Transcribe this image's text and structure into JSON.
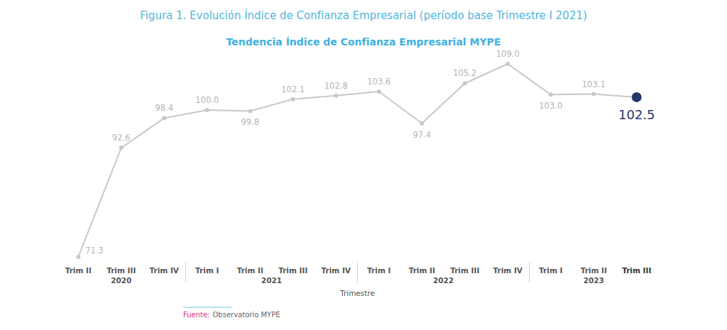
{
  "chart_data": {
    "type": "line",
    "title": "Figura 1. Evolución Índice de Confianza Empresarial (período base Trimestre I 2021)",
    "subtitle": "Tendencia Índice de Confianza Empresarial MYPE",
    "x_label": "Trimestre",
    "source_label": "Fuente:",
    "source": "Observatorio MYPE",
    "categories": [
      "Trim II",
      "Trim III",
      "Trim IV",
      "Trim I",
      "Trim II",
      "Trim III",
      "Trim IV",
      "Trim I",
      "Trim II",
      "Trim III",
      "Trim IV",
      "Trim I",
      "Trim II",
      "Trim III"
    ],
    "x_groups": [
      {
        "label": "2020",
        "count": 3
      },
      {
        "label": "2021",
        "count": 4
      },
      {
        "label": "2022",
        "count": 4
      },
      {
        "label": "2023",
        "count": 3
      }
    ],
    "values": [
      71.3,
      92.6,
      98.4,
      100.0,
      99.8,
      102.1,
      102.8,
      103.6,
      97.4,
      105.2,
      109.0,
      103.0,
      103.1,
      102.5
    ],
    "value_labels": [
      "71.3",
      "92.6",
      "98.4",
      "100.0",
      "99.8",
      "102.1",
      "102.8",
      "103.6",
      "97.4",
      "105.2",
      "109.0",
      "103.0",
      "103.1",
      "102.5"
    ],
    "color": "#c8c8c8",
    "colors": [
      "#c8c8c8",
      "#c8c8c8",
      "#c8c8c8",
      "#c8c8c8",
      "#c8c8c8",
      "#c8c8c8",
      "#c8c8c8",
      "#c8c8c8",
      "#c8c8c8",
      "#c8c8c8",
      "#c8c8c8",
      "#c8c8c8",
      "#c8c8c8",
      "#1f3a68"
    ],
    "marker": "circle",
    "ylim": [
      70,
      110
    ],
    "tick_labels": "x",
    "grid": false,
    "data_labels": true
  }
}
